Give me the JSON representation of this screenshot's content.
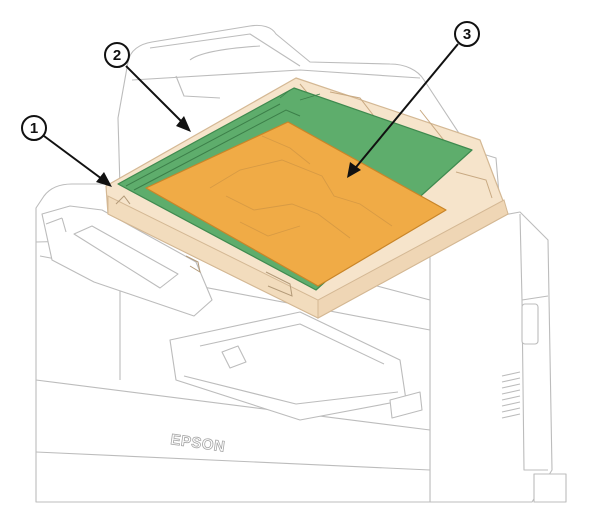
{
  "callouts": [
    {
      "number": "1"
    },
    {
      "number": "2"
    },
    {
      "number": "3"
    }
  ],
  "brand_logo": "EPSON",
  "colors": {
    "printer_outline": "#b8b8b8",
    "printer_body": "#ffffff",
    "glass_edge": "#f4e1c8",
    "scanner_glass_area": "#5ead6c",
    "scanning_area": "#f0ab46",
    "callout": "#111111"
  }
}
